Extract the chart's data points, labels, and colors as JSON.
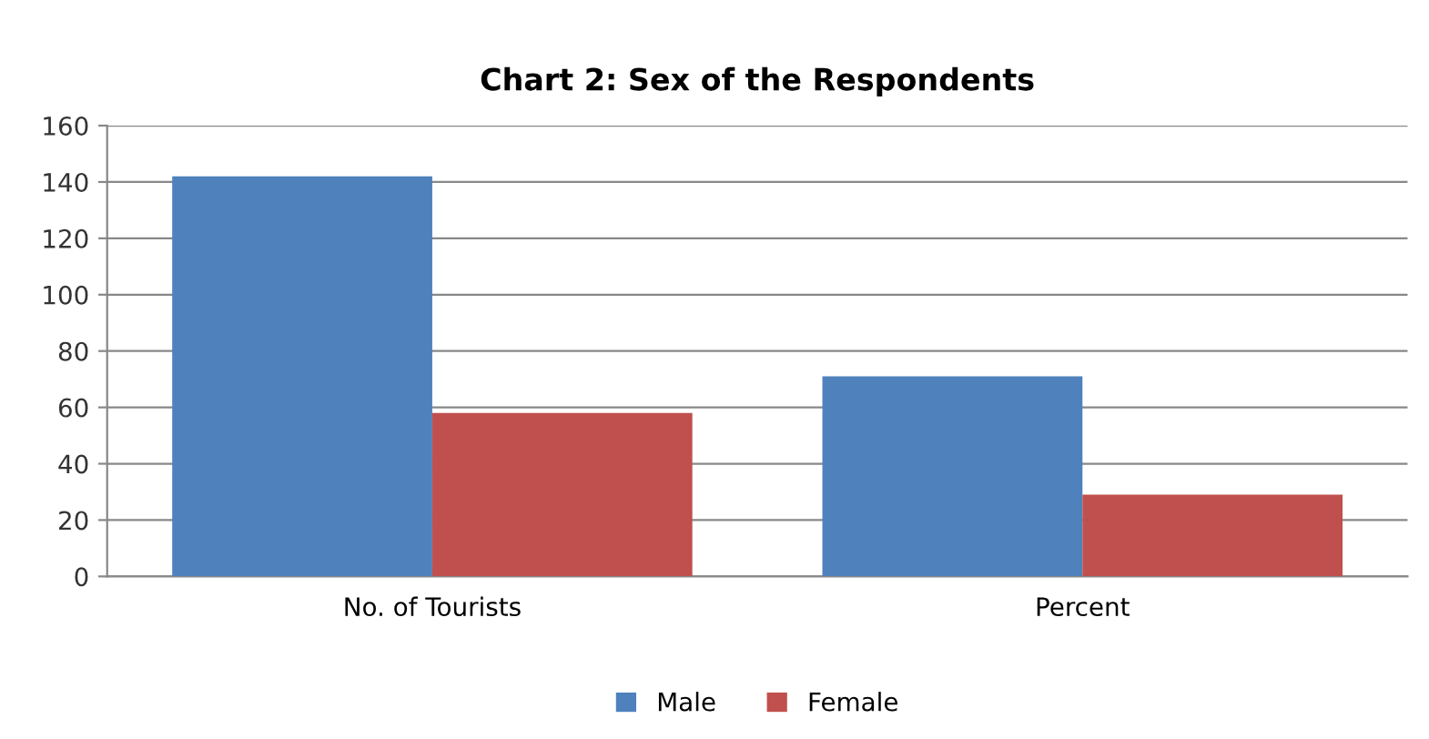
{
  "chart_data": {
    "type": "bar",
    "title": "Chart 2: Sex of the Respondents",
    "categories": [
      "No. of Tourists",
      "Percent"
    ],
    "series": [
      {
        "name": "Male",
        "color": "#4f81bd",
        "values": [
          142,
          71
        ]
      },
      {
        "name": "Female",
        "color": "#c0504d",
        "values": [
          58,
          29
        ]
      }
    ],
    "ylim": [
      0,
      160
    ],
    "yticks": [
      0,
      20,
      40,
      60,
      80,
      100,
      120,
      140,
      160
    ],
    "grid": "y",
    "legend": "bottom"
  }
}
